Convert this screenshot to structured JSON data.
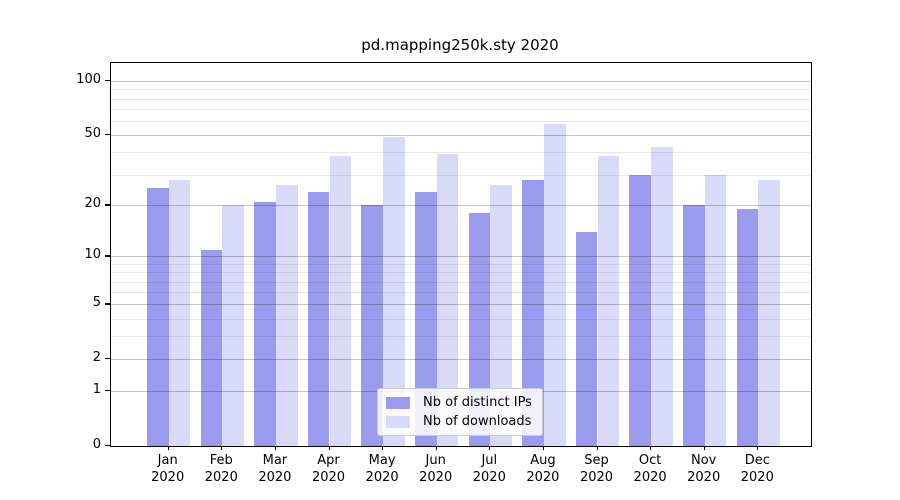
{
  "title": "pd.mapping250k.sty 2020",
  "colors": {
    "distinct_ips": "#9a9aee",
    "downloads": "#d9d9f8",
    "axis": "#000000",
    "grid_major": "rgba(0,0,0,0.22)",
    "grid_minor": "rgba(0,0,0,0.09)",
    "legend_border": "#cccccc",
    "legend_bg": "rgba(255,255,255,0.85)"
  },
  "y_axis": {
    "scale": "log1p",
    "major_ticks": [
      100,
      50,
      20,
      10,
      5,
      2,
      1,
      0
    ],
    "minor_ticks": [
      3,
      4,
      6,
      7,
      8,
      9,
      30,
      40,
      60,
      70,
      80,
      90
    ]
  },
  "x_axis": {
    "months": [
      "Jan",
      "Feb",
      "Mar",
      "Apr",
      "May",
      "Jun",
      "Jul",
      "Aug",
      "Sep",
      "Oct",
      "Nov",
      "Dec"
    ],
    "year": "2020"
  },
  "legend": {
    "items": [
      {
        "label": "Nb of distinct IPs",
        "color": "#9a9aee"
      },
      {
        "label": "Nb of downloads",
        "color": "#d9d9f8"
      }
    ]
  },
  "chart_data": {
    "type": "bar",
    "title": "pd.mapping250k.sty 2020",
    "categories": [
      "Jan 2020",
      "Feb 2020",
      "Mar 2020",
      "Apr 2020",
      "May 2020",
      "Jun 2020",
      "Jul 2020",
      "Aug 2020",
      "Sep 2020",
      "Oct 2020",
      "Nov 2020",
      "Dec 2020"
    ],
    "series": [
      {
        "name": "Nb of distinct IPs",
        "values": [
          25,
          11,
          21,
          24,
          20,
          24,
          18,
          28,
          14,
          30,
          20,
          19
        ]
      },
      {
        "name": "Nb of downloads",
        "values": [
          28,
          20,
          26,
          38,
          49,
          39,
          26,
          58,
          38,
          43,
          30,
          28
        ]
      }
    ],
    "yscale": "log1p",
    "ylim": [
      0,
      124
    ],
    "yticks": [
      0,
      1,
      2,
      5,
      10,
      20,
      50,
      100
    ],
    "grid": true,
    "legend_position": "lower center"
  }
}
